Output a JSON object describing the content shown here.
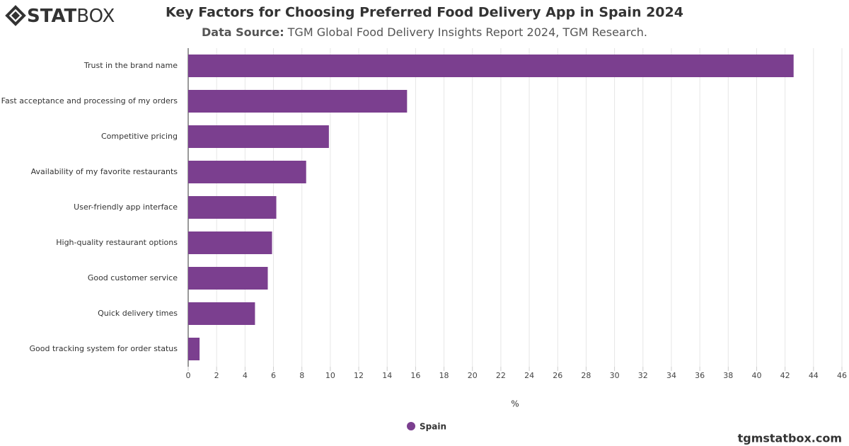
{
  "logo": {
    "bold": "STAT",
    "light": "BOX"
  },
  "chart_data": {
    "type": "barh",
    "title": "Key Factors for Choosing Preferred Food Delivery App in Spain 2024",
    "subtitle_label": "Data Source:",
    "subtitle": "TGM Global Food Delivery Insights Report 2024, TGM Research.",
    "categories": [
      "Trust in the brand name",
      "Fast acceptance and processing of my orders",
      "Competitive pricing",
      "Availability of my favorite restaurants",
      "User-friendly app interface",
      "High-quality restaurant options",
      "Good customer service",
      "Quick delivery times",
      "Good tracking system for order status"
    ],
    "series": [
      {
        "name": "Spain",
        "color": "#7b3f8f",
        "values": [
          42.6,
          15.4,
          9.9,
          8.3,
          6.2,
          5.9,
          5.6,
          4.7,
          0.8
        ]
      }
    ],
    "xlabel": "%",
    "xlim": [
      0,
      46
    ],
    "xticks": [
      0,
      2,
      4,
      6,
      8,
      10,
      12,
      14,
      16,
      18,
      20,
      22,
      24,
      26,
      28,
      30,
      32,
      34,
      36,
      38,
      40,
      42,
      44,
      46
    ],
    "grid": true
  },
  "footer": "tgmstatbox.com"
}
